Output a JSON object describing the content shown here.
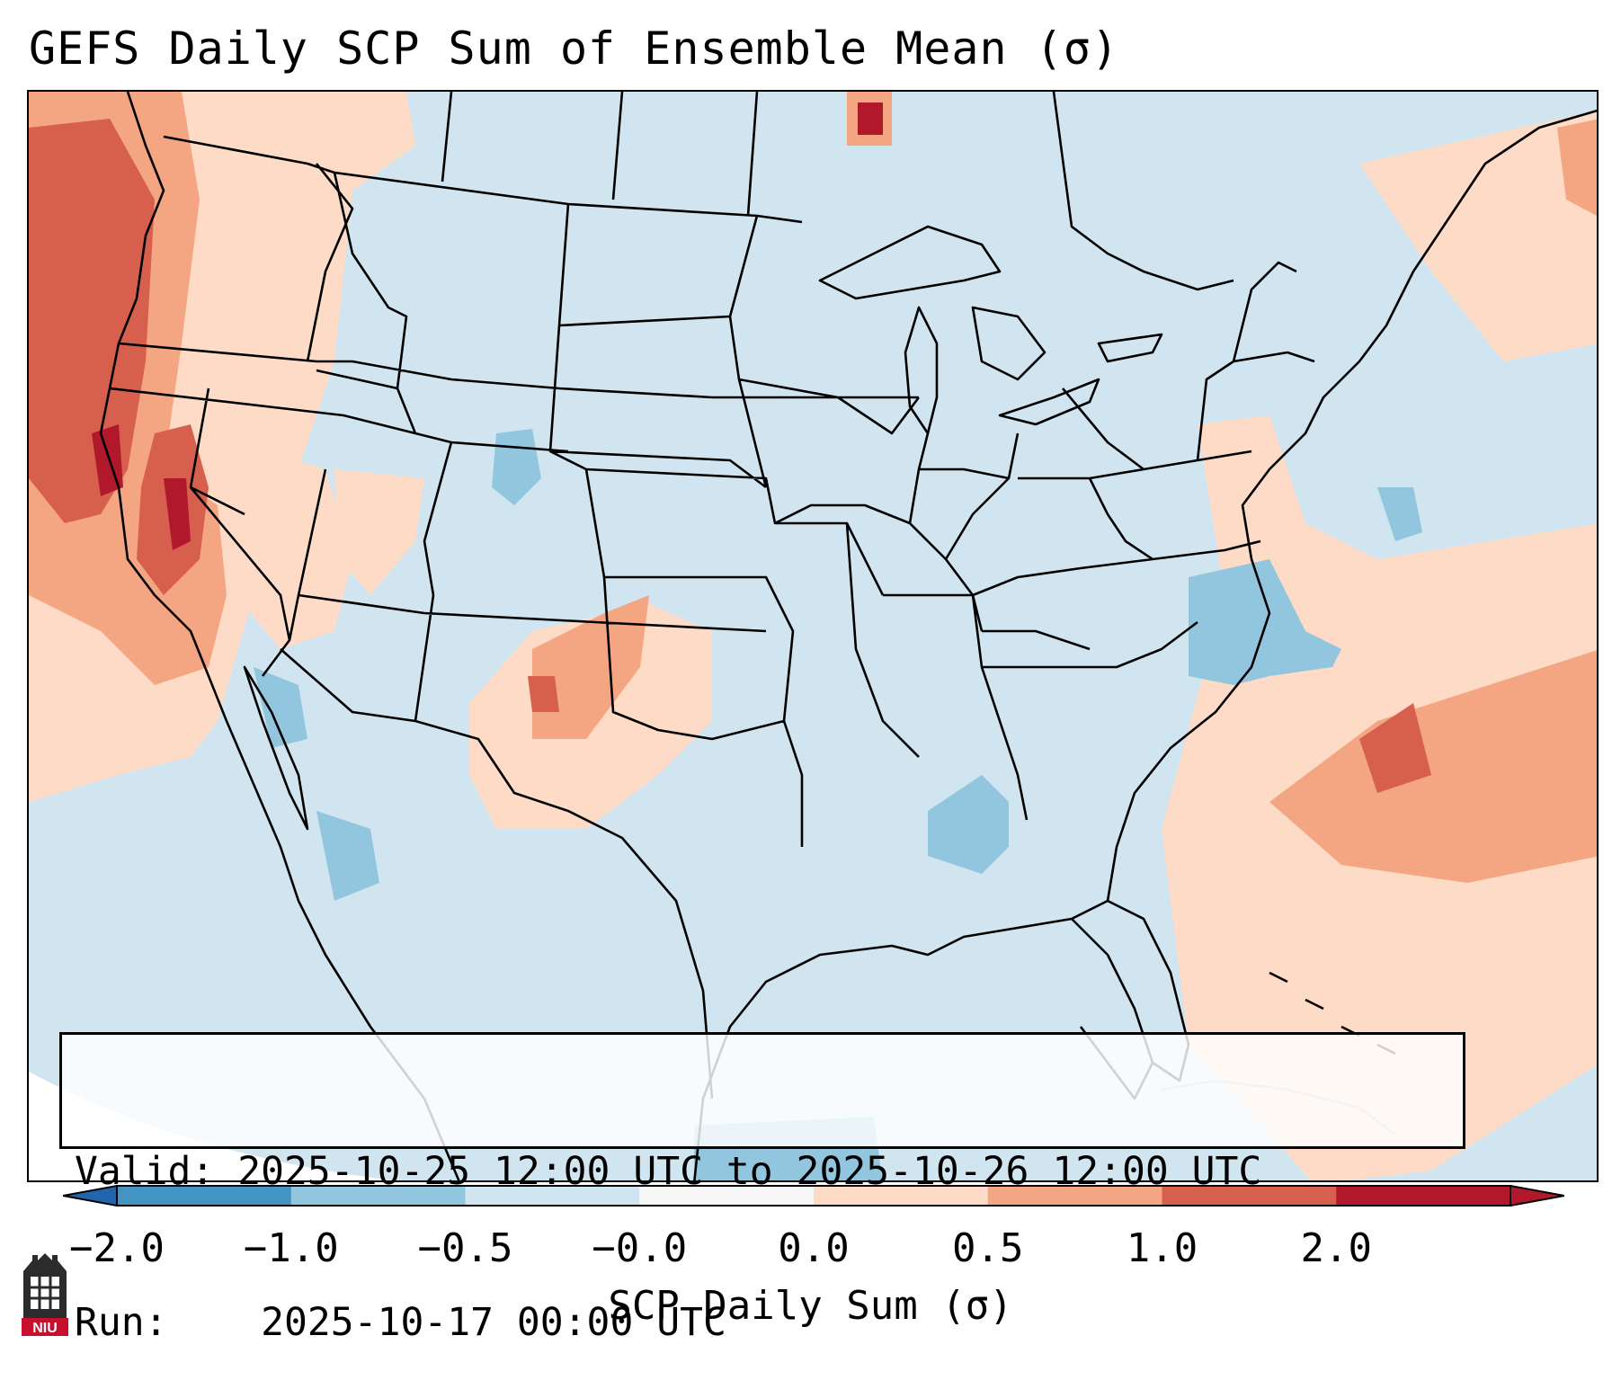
{
  "title": "GEFS Daily SCP Sum of Ensemble Mean (σ)",
  "info": {
    "valid_label": "Valid:",
    "valid_value": "2025-10-25 12:00 UTC to 2025-10-26 12:00 UTC",
    "run_label": "Run:",
    "run_value": "2025-10-17 00:00 UTC"
  },
  "colorbar": {
    "label": "SCP Daily Sum (σ)",
    "ticks": [
      "−2.0",
      "−1.0",
      "−0.5",
      "−0.0",
      "0.0",
      "0.5",
      "1.0",
      "2.0"
    ],
    "colors": [
      "#4393c3",
      "#92c5de",
      "#d1e5f0",
      "#f7f7f7",
      "#fddbc7",
      "#f4a582",
      "#d6604d",
      "#b2182b"
    ],
    "extend_min_color": "#2166ac",
    "extend_max_color": "#b2182b"
  },
  "map": {
    "region": "Contiguous United States",
    "background_color": "#d1e5f0",
    "anomalies": [
      {
        "area": "Pacific Northwest coast",
        "level": "1.0 to 2.0"
      },
      {
        "area": "Northern California",
        "level": "1.0 to 2.0"
      },
      {
        "area": "Intermountain West",
        "level": "0.0 to 1.0"
      },
      {
        "area": "Eastern New Mexico",
        "level": "0.5 to 1.0"
      },
      {
        "area": "Western Atlantic",
        "level": "0.5 to 1.0"
      },
      {
        "area": "Colorado",
        "level": "-1.0 to -0.5"
      },
      {
        "area": "Carolina offshore",
        "level": "-1.0 to -0.5"
      },
      {
        "area": "Gulf of Mexico",
        "level": "-1.0 to -0.5"
      }
    ]
  },
  "logo": {
    "text": "NIU",
    "color": "#c8102e"
  }
}
